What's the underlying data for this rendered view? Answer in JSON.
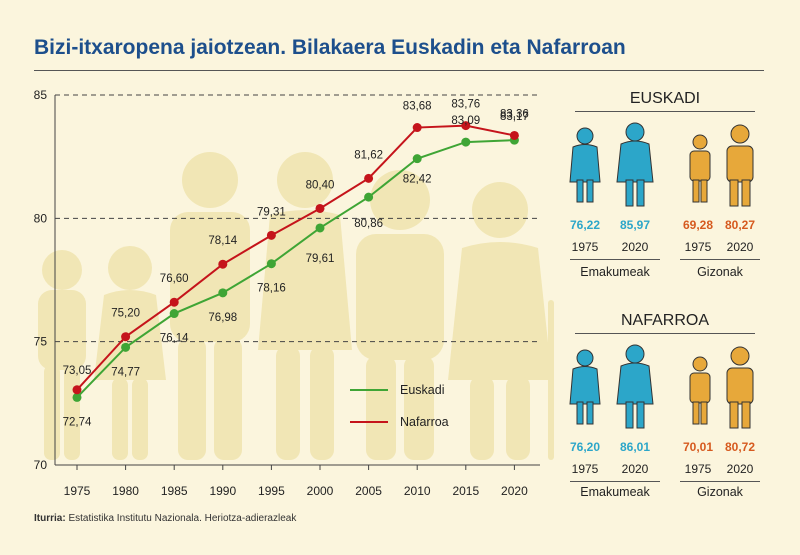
{
  "title": "Bizi-itxaropena jaiotzean. Bilakaera Euskadin eta Nafarroan",
  "source": {
    "label": "Iturria:",
    "text": "Estatistika Institutu Nazionala. Heriotza-adierazleak"
  },
  "colors": {
    "euskadi": "#3fa535",
    "nafarroa": "#c5141b",
    "women": "#2ca6c9",
    "men": "#e7a83a",
    "title": "#1d4f8c"
  },
  "chart_data": {
    "type": "line",
    "title": "Bizi-itxaropena jaiotzean. Bilakaera Euskadin eta Nafarroan",
    "xlabel": "",
    "ylabel": "",
    "categories": [
      "1975",
      "1980",
      "1985",
      "1990",
      "1995",
      "2000",
      "2005",
      "2010",
      "2015",
      "2020"
    ],
    "ylim": [
      70,
      85
    ],
    "yticks": [
      70,
      75,
      80,
      85
    ],
    "grid": "dashed at 75, 80, 85",
    "legend": "bottom-center",
    "series": [
      {
        "name": "Euskadi",
        "color": "#3fa535",
        "values": [
          72.74,
          74.77,
          76.14,
          76.98,
          78.16,
          79.61,
          80.86,
          82.42,
          83.09,
          83.17
        ],
        "labels": [
          "72,74",
          "74,77",
          "76,14",
          "76,98",
          "78,16",
          "79,61",
          "80,86",
          "82,42",
          "83,09",
          "83,17"
        ]
      },
      {
        "name": "Nafarroa",
        "color": "#c5141b",
        "values": [
          73.05,
          75.2,
          76.6,
          78.14,
          79.31,
          80.4,
          81.62,
          83.68,
          83.76,
          83.36
        ],
        "labels": [
          "73,05",
          "75,20",
          "76,60",
          "78,14",
          "79,31",
          "80,40",
          "81,62",
          "83,68",
          "83,76",
          "83,36"
        ]
      }
    ]
  },
  "panels": [
    {
      "name": "EUSKADI",
      "groups": [
        {
          "label": "Emakumeak",
          "items": [
            {
              "value": "76,22",
              "year": "1975"
            },
            {
              "value": "85,97",
              "year": "2020"
            }
          ]
        },
        {
          "label": "Gizonak",
          "items": [
            {
              "value": "69,28",
              "year": "1975"
            },
            {
              "value": "80,27",
              "year": "2020"
            }
          ]
        }
      ]
    },
    {
      "name": "NAFARROA",
      "groups": [
        {
          "label": "Emakumeak",
          "items": [
            {
              "value": "76,20",
              "year": "1975"
            },
            {
              "value": "86,01",
              "year": "2020"
            }
          ]
        },
        {
          "label": "Gizonak",
          "items": [
            {
              "value": "70,01",
              "year": "1975"
            },
            {
              "value": "80,72",
              "year": "2020"
            }
          ]
        }
      ]
    }
  ]
}
